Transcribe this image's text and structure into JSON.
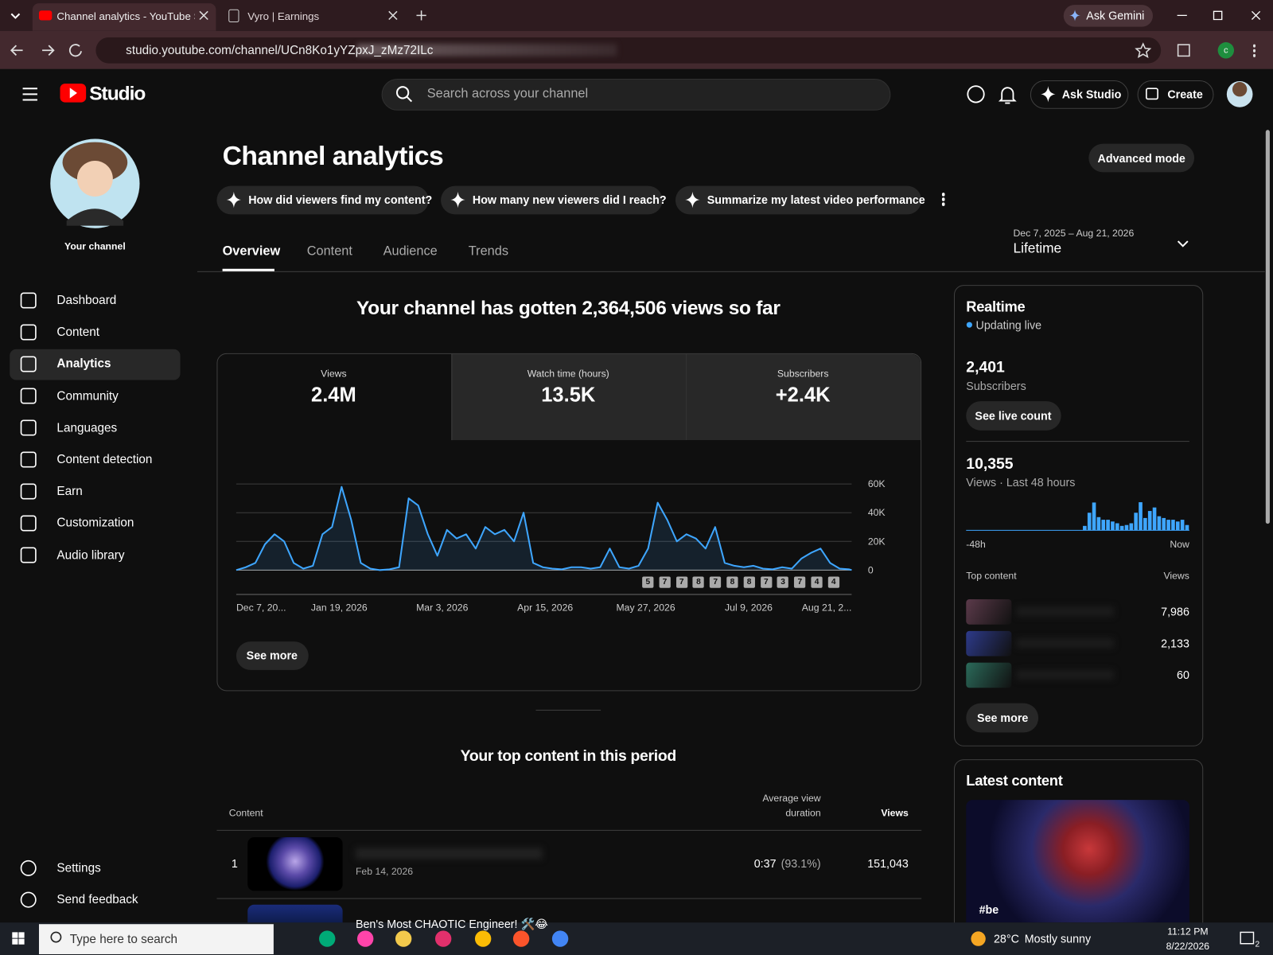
{
  "browser": {
    "tabs": [
      "Channel analytics - YouTube Studio",
      "Vyro | Earnings"
    ],
    "ask_gemini": "Ask Gemini",
    "url": "studio.youtube.com/channel/UCn8Ko1yYZpxJ_zMz72ILc",
    "profile": "c"
  },
  "topbar": {
    "logo": "Studio",
    "search_placeholder": "Search across your channel",
    "ask_studio": "Ask Studio",
    "create": "Create"
  },
  "sidebar": {
    "channel": "Your channel",
    "nav": [
      "Dashboard",
      "Content",
      "Analytics",
      "Community",
      "Languages",
      "Content detection",
      "Earn",
      "Customization",
      "Audio library"
    ],
    "bottom": [
      "Settings",
      "Send feedback"
    ]
  },
  "header": {
    "title": "Channel analytics",
    "advanced": "Advanced mode",
    "prompts": [
      "How did viewers find my content?",
      "How many new viewers did I reach?",
      "Summarize my latest video performance"
    ],
    "tabs": [
      "Overview",
      "Content",
      "Audience",
      "Trends"
    ],
    "date_range": "Dec 7, 2025 – Aug 21, 2026",
    "period": "Lifetime"
  },
  "summary": "Your channel has gotten 2,364,506 views so far",
  "metrics": [
    {
      "label": "Views",
      "value": "2.4M"
    },
    {
      "label": "Watch time (hours)",
      "value": "13.5K"
    },
    {
      "label": "Subscribers",
      "value": "+2.4K"
    }
  ],
  "upload_markers": [
    5,
    7,
    7,
    8,
    7,
    8,
    8,
    7,
    3,
    7,
    4,
    4
  ],
  "see_more": "See more",
  "chart_data": [
    {
      "type": "line",
      "color": "#3ea6ff",
      "x": [
        "2025-12-07",
        "2025-12-11",
        "2025-12-15",
        "2025-12-19",
        "2025-12-23",
        "2025-12-27",
        "2025-12-31",
        "2026-01-04",
        "2026-01-08",
        "2026-01-12",
        "2026-01-16",
        "2026-01-20",
        "2026-01-24",
        "2026-01-28",
        "2026-02-01",
        "2026-02-05",
        "2026-02-09",
        "2026-02-13",
        "2026-02-17",
        "2026-02-21",
        "2026-02-25",
        "2026-03-01",
        "2026-03-05",
        "2026-03-09",
        "2026-03-13",
        "2026-03-17",
        "2026-03-21",
        "2026-03-25",
        "2026-03-29",
        "2026-04-02",
        "2026-04-06",
        "2026-04-10",
        "2026-04-14",
        "2026-04-18",
        "2026-04-22",
        "2026-04-26",
        "2026-04-30",
        "2026-05-04",
        "2026-05-08",
        "2026-05-12",
        "2026-05-16",
        "2026-05-20",
        "2026-05-24",
        "2026-05-28",
        "2026-06-01",
        "2026-06-05",
        "2026-06-09",
        "2026-06-13",
        "2026-06-17",
        "2026-06-21",
        "2026-06-25",
        "2026-06-29",
        "2026-07-03",
        "2026-07-07",
        "2026-07-11",
        "2026-07-15",
        "2026-07-19",
        "2026-07-23",
        "2026-07-27",
        "2026-07-31",
        "2026-08-04",
        "2026-08-08",
        "2026-08-12",
        "2026-08-16",
        "2026-08-20",
        "2026-08-21"
      ],
      "values": [
        0,
        2000,
        5000,
        18000,
        25000,
        20000,
        5000,
        1000,
        3000,
        25000,
        30000,
        58000,
        35000,
        5000,
        1000,
        0,
        500,
        2000,
        50000,
        45000,
        25000,
        10000,
        28000,
        22000,
        25000,
        15000,
        30000,
        25000,
        28000,
        20000,
        40000,
        5000,
        2000,
        1000,
        500,
        2000,
        2000,
        1000,
        2000,
        15000,
        2000,
        1000,
        3000,
        15000,
        47000,
        35000,
        20000,
        25000,
        22000,
        15000,
        30000,
        5000,
        3000,
        2000,
        3000,
        1000,
        500,
        2000,
        1000,
        8000,
        12000,
        15000,
        5000,
        1000,
        500,
        0
      ],
      "xlim": [
        "2025-12-07",
        "2026-08-21"
      ],
      "xticks": [
        {
          "value": "2025-12-07",
          "label": "Dec 7, 20..."
        },
        {
          "value": "2026-01-19",
          "label": "Jan 19, 2026"
        },
        {
          "value": "2026-03-03",
          "label": "Mar 3, 2026"
        },
        {
          "value": "2026-04-15",
          "label": "Apr 15, 2026"
        },
        {
          "value": "2026-05-27",
          "label": "May 27, 2026"
        },
        {
          "value": "2026-07-09",
          "label": "Jul 9, 2026"
        },
        {
          "value": "2026-08-21",
          "label": "Aug 21, 2..."
        }
      ],
      "ylim": [
        0,
        60000
      ],
      "yticks": [
        0,
        {
          "value": 20000,
          "label": "20K"
        },
        {
          "value": 40000,
          "label": "40K"
        },
        {
          "value": 60000,
          "label": "60K"
        }
      ],
      "grid": true
    },
    {
      "type": "bar",
      "color": "#3ea6ff",
      "ylim": [
        0,
        1000
      ],
      "values": [
        0,
        0,
        0,
        0,
        0,
        0,
        0,
        0,
        0,
        0,
        0,
        0,
        0,
        0,
        0,
        0,
        0,
        0,
        0,
        0,
        0,
        0,
        0,
        0,
        0,
        150,
        600,
        950,
        450,
        360,
        360,
        300,
        240,
        150,
        180,
        240,
        600,
        960,
        420,
        660,
        780,
        480,
        420,
        360,
        360,
        300,
        360,
        180
      ],
      "start_label": "-48h",
      "end_label": "Now"
    }
  ],
  "realtime": {
    "title": "Realtime",
    "status": "Updating live",
    "subscribers": "2,401",
    "subscribers_label": "Subscribers",
    "live_count": "See live count",
    "views": "10,355",
    "views_label": "Views · Last 48 hours",
    "top_content": "Top content",
    "views_col": "Views",
    "top_views": [
      "7,986",
      "2,133",
      "60"
    ],
    "see_more": "See more"
  },
  "latest": {
    "title": "Latest content",
    "overlay": "#be"
  },
  "top_table": {
    "title": "Your top content in this period",
    "columns": [
      "Content",
      "Average view duration",
      "Views"
    ],
    "rows": [
      {
        "rank": "1",
        "date": "Feb 14, 2026",
        "duration": "0:37",
        "percent": "(93.1%)",
        "views": "151,043"
      },
      {
        "title": "Ben's Most CHAOTIC Engineer! 🛠️😂"
      }
    ]
  },
  "taskbar": {
    "search": "Type here to search",
    "temperature": "28°C",
    "weather": "Mostly sunny",
    "time": "11:12 PM",
    "date": "8/22/2026",
    "notifications": "2"
  }
}
